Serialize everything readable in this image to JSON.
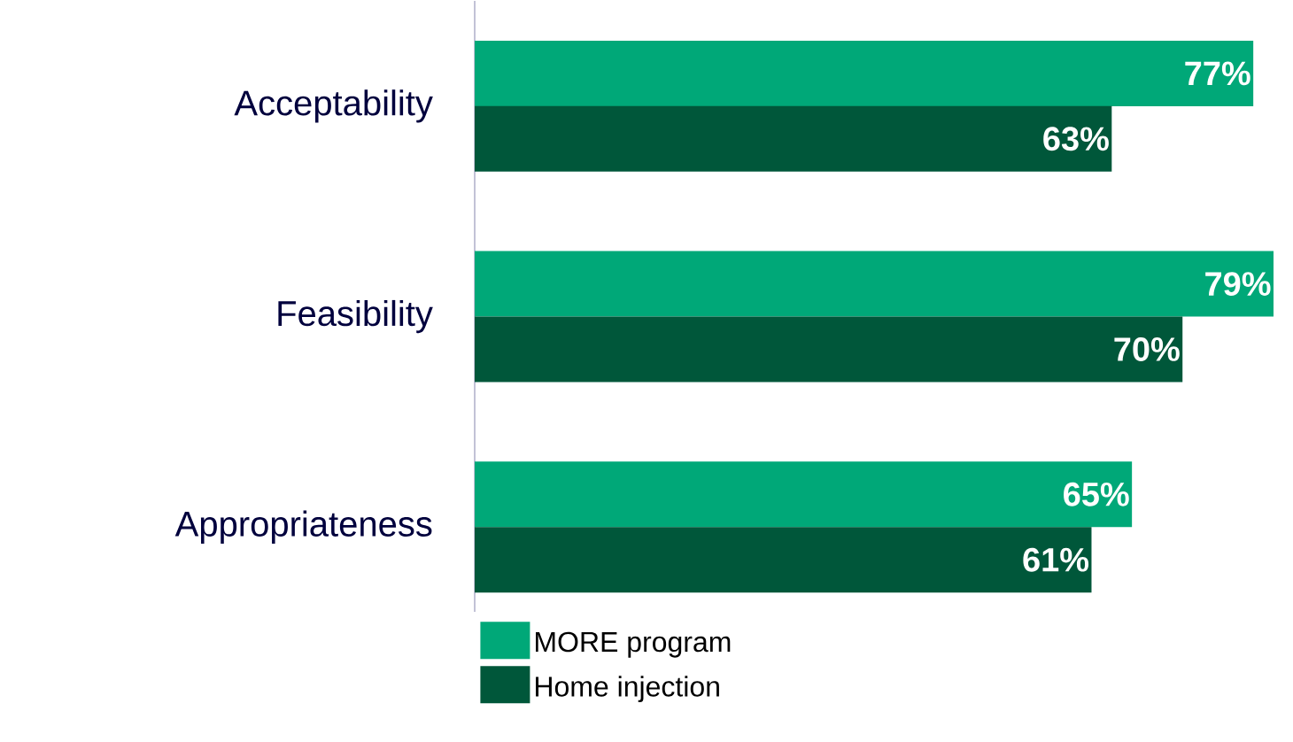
{
  "chart_data": {
    "type": "bar",
    "orientation": "horizontal",
    "categories": [
      "Acceptability",
      "Feasibility",
      "Appropriateness"
    ],
    "series": [
      {
        "name": "MORE program",
        "color": "#00a878",
        "values": [
          77,
          79,
          65
        ],
        "value_labels": [
          "77%",
          "79%",
          "65%"
        ]
      },
      {
        "name": "Home injection",
        "color": "#00573a",
        "values": [
          63,
          70,
          61
        ],
        "value_labels": [
          "63%",
          "70%",
          "61%"
        ]
      }
    ],
    "legend": "bottom"
  }
}
